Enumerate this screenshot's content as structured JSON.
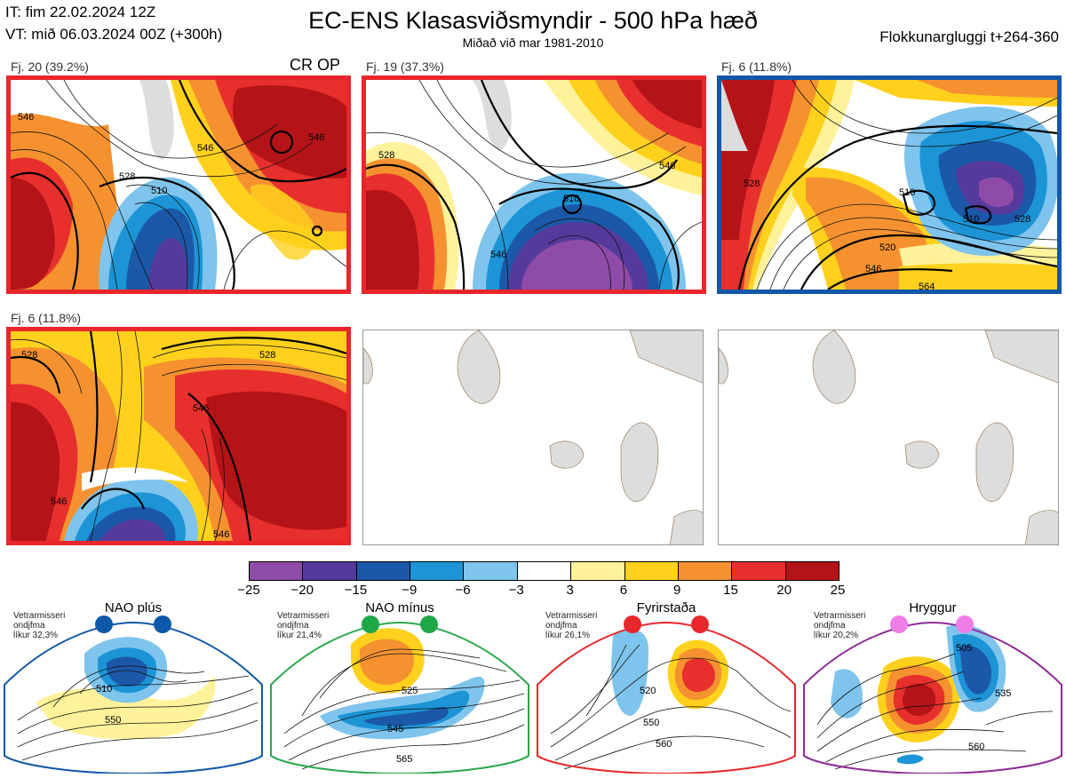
{
  "header": {
    "it": "IT: fim 22.02.2024 12Z",
    "vt": "VT: mið 06.03.2024 00Z  (+300h)",
    "title": "EC-ENS Klasasviðsmyndir - 500 hPa hæð",
    "subtitle": "Miðað við mar 1981-2010",
    "window": "Flokkunargluggi t+264-360"
  },
  "panels": [
    {
      "label": "Fj. 20 (39.2%)",
      "border": "#e8262b",
      "extra": "CR OP",
      "contours": [
        "546",
        "528",
        "510",
        "546",
        "546"
      ]
    },
    {
      "label": "Fj. 19 (37.3%)",
      "border": "#e8262b",
      "contours": [
        "528",
        "510",
        "546",
        "546"
      ]
    },
    {
      "label": "Fj. 6 (11.8%)",
      "border": "#1257a8",
      "contours": [
        "528",
        "510",
        "510",
        "528",
        "520",
        "546",
        "564"
      ]
    },
    {
      "label": "Fj. 6 (11.8%)",
      "border": "#e8262b",
      "contours": [
        "528",
        "528",
        "546",
        "546",
        "546"
      ]
    }
  ],
  "colorbar": {
    "colors": [
      "#8e4ba7",
      "#553a9b",
      "#1c58a8",
      "#1c94d6",
      "#7ec4ec",
      "#ffffff",
      "#fff29a",
      "#ffd11d",
      "#f5922f",
      "#e7302d",
      "#b41417"
    ],
    "ticks": [
      "−25",
      "−20",
      "−15",
      "−9",
      "−6",
      "−3",
      "3",
      "6",
      "9",
      "15",
      "20",
      "25"
    ]
  },
  "regimes": [
    {
      "name": "NAO plús",
      "info": [
        "Vetrarmisseri",
        "ondjfma",
        "líkur 32,3%"
      ],
      "outline": "#1257a8",
      "dot": "#0d58a8",
      "labels": [
        "510",
        "550"
      ]
    },
    {
      "name": "NAO mínus",
      "info": [
        "Vetrarmisseri",
        "ondjfma",
        "líkur 21,4%"
      ],
      "outline": "#2aa84a",
      "dot": "#1ea747",
      "labels": [
        "525",
        "545",
        "565"
      ]
    },
    {
      "name": "Fyrirstaða",
      "info": [
        "Vetrarmisseri",
        "ondjfma",
        "líkur 26,1%"
      ],
      "outline": "#e8262b",
      "dot": "#e8262b",
      "labels": [
        "520",
        "550",
        "560"
      ]
    },
    {
      "name": "Hryggur",
      "info": [
        "Vetrarmisseri",
        "ondjfma",
        "líkur 20,2%"
      ],
      "outline": "#8e2b96",
      "dot": "#ef7de6",
      "labels": [
        "505",
        "535",
        "560"
      ]
    }
  ]
}
